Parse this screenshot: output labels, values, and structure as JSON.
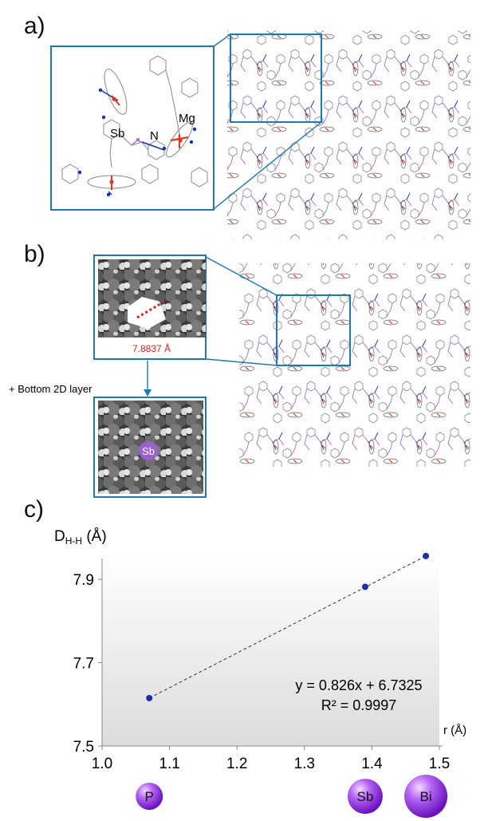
{
  "panels": {
    "a": {
      "letter": "a)",
      "inset_labels": {
        "sb": "Sb",
        "n": "N",
        "mg": "Mg"
      }
    },
    "b": {
      "letter": "b)",
      "distance_label": "7.8837 Å",
      "arrow_caption": "+ Bottom 2D layer",
      "sphere_label": "Sb"
    },
    "c": {
      "letter": "c)"
    }
  },
  "colors": {
    "frame": "#1f77b4",
    "data_point": "#1b2fa8",
    "distance": "#e02020",
    "sphere_purple": "#9b3ff0",
    "mg": "#e8341c",
    "n": "#1a2fb0",
    "sb": "#a070d0"
  },
  "chart_data": {
    "type": "scatter",
    "ylabel_main": "D",
    "ylabel_sub": "H-H",
    "ylabel_unit": " (Å)",
    "xlabel": "r (Å)",
    "x_ticks": [
      "1.0",
      "1.1",
      "1.2",
      "1.3",
      "1.4",
      "1.5"
    ],
    "y_ticks": [
      "7.5",
      "7.7",
      "7.9"
    ],
    "xlim": [
      1.0,
      1.5
    ],
    "ylim": [
      7.5,
      7.95
    ],
    "points": [
      {
        "x": 1.07,
        "y": 7.615
      },
      {
        "x": 1.39,
        "y": 7.882
      },
      {
        "x": 1.48,
        "y": 7.956
      }
    ],
    "fit_equation": "y = 0.826x + 6.7325",
    "r_squared": "R² = 0.9997",
    "elements": [
      {
        "label": "P",
        "x": 1.07,
        "size": "small"
      },
      {
        "label": "Sb",
        "x": 1.39,
        "size": "medium"
      },
      {
        "label": "Bi",
        "x": 1.48,
        "size": "large"
      }
    ]
  }
}
